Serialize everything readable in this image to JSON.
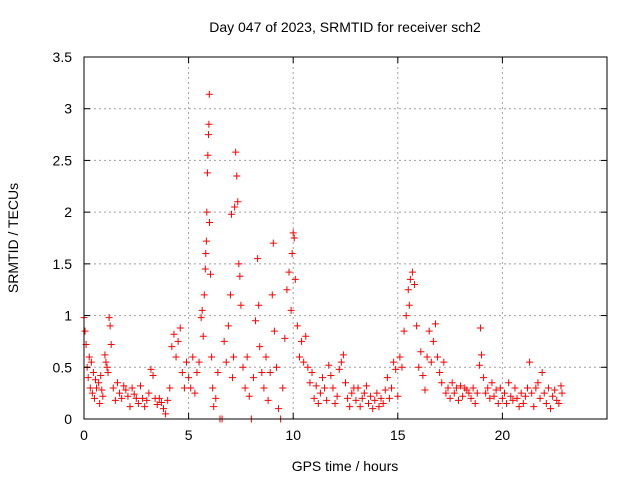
{
  "chart_data": {
    "type": "scatter",
    "title": "Day 047 of 2023, SRMTID for receiver sch2",
    "xlabel": "GPS time / hours",
    "ylabel": "SRMTID / TECUs",
    "xlim": [
      0,
      25
    ],
    "ylim": [
      0,
      3.5
    ],
    "xticks": [
      0,
      5,
      10,
      15,
      20
    ],
    "xtick_labels": [
      "0",
      "5",
      "10",
      "15",
      "20"
    ],
    "yticks": [
      0,
      0.5,
      1,
      1.5,
      2,
      2.5,
      3,
      3.5
    ],
    "ytick_labels": [
      "0",
      "0.5",
      "1",
      "1.5",
      "2",
      "2.5",
      "3",
      "3.5"
    ],
    "grid": true,
    "marker": "+",
    "color": "#ff0000",
    "series": [
      {
        "name": "SRMTID",
        "points": [
          [
            0.0,
            0.98
          ],
          [
            0.05,
            0.85
          ],
          [
            0.1,
            0.72
          ],
          [
            0.15,
            0.5
          ],
          [
            0.2,
            0.4
          ],
          [
            0.25,
            0.6
          ],
          [
            0.3,
            0.3
          ],
          [
            0.35,
            0.55
          ],
          [
            0.4,
            0.25
          ],
          [
            0.45,
            0.45
          ],
          [
            0.5,
            0.2
          ],
          [
            0.55,
            0.38
          ],
          [
            0.6,
            0.3
          ],
          [
            0.7,
            0.35
          ],
          [
            0.75,
            0.15
          ],
          [
            0.8,
            0.42
          ],
          [
            0.85,
            0.28
          ],
          [
            0.9,
            0.22
          ],
          [
            1.0,
            0.62
          ],
          [
            1.05,
            0.55
          ],
          [
            1.1,
            0.5
          ],
          [
            1.15,
            0.45
          ],
          [
            1.2,
            0.98
          ],
          [
            1.25,
            0.9
          ],
          [
            1.3,
            0.72
          ],
          [
            1.4,
            0.3
          ],
          [
            1.5,
            0.18
          ],
          [
            1.6,
            0.35
          ],
          [
            1.7,
            0.25
          ],
          [
            1.8,
            0.2
          ],
          [
            1.9,
            0.32
          ],
          [
            2.0,
            0.28
          ],
          [
            2.1,
            0.22
          ],
          [
            2.2,
            0.12
          ],
          [
            2.3,
            0.3
          ],
          [
            2.4,
            0.24
          ],
          [
            2.5,
            0.2
          ],
          [
            2.6,
            0.15
          ],
          [
            2.7,
            0.32
          ],
          [
            2.8,
            0.2
          ],
          [
            2.9,
            0.12
          ],
          [
            3.0,
            0.18
          ],
          [
            3.1,
            0.25
          ],
          [
            3.2,
            0.48
          ],
          [
            3.3,
            0.42
          ],
          [
            3.4,
            0.2
          ],
          [
            3.5,
            0.14
          ],
          [
            3.6,
            0.2
          ],
          [
            3.7,
            0.16
          ],
          [
            3.8,
            0.1
          ],
          [
            3.9,
            0.05
          ],
          [
            4.0,
            0.18
          ],
          [
            4.1,
            0.3
          ],
          [
            4.2,
            0.7
          ],
          [
            4.3,
            0.82
          ],
          [
            4.4,
            0.6
          ],
          [
            4.5,
            0.75
          ],
          [
            4.6,
            0.88
          ],
          [
            4.7,
            0.45
          ],
          [
            4.8,
            0.3
          ],
          [
            4.9,
            0.55
          ],
          [
            5.0,
            0.4
          ],
          [
            5.1,
            0.3
          ],
          [
            5.2,
            0.6
          ],
          [
            5.3,
            0.25
          ],
          [
            5.4,
            0.45
          ],
          [
            5.5,
            0.55
          ],
          [
            5.6,
            0.98
          ],
          [
            5.65,
            1.05
          ],
          [
            5.7,
            0.8
          ],
          [
            5.75,
            1.2
          ],
          [
            5.8,
            1.45
          ],
          [
            5.82,
            1.6
          ],
          [
            5.85,
            1.72
          ],
          [
            5.87,
            2.0
          ],
          [
            5.9,
            2.38
          ],
          [
            5.92,
            2.55
          ],
          [
            5.95,
            2.75
          ],
          [
            5.97,
            2.85
          ],
          [
            5.99,
            3.14
          ],
          [
            6.0,
            1.9
          ],
          [
            6.05,
            1.4
          ],
          [
            6.1,
            0.6
          ],
          [
            6.15,
            0.3
          ],
          [
            6.2,
            0.12
          ],
          [
            6.3,
            0.2
          ],
          [
            6.4,
            0.45
          ],
          [
            6.5,
            0.0
          ],
          [
            6.6,
            0.0
          ],
          [
            6.7,
            0.75
          ],
          [
            6.8,
            0.55
          ],
          [
            6.9,
            0.9
          ],
          [
            7.0,
            1.2
          ],
          [
            7.05,
            1.98
          ],
          [
            7.1,
            0.4
          ],
          [
            7.15,
            0.6
          ],
          [
            7.2,
            2.05
          ],
          [
            7.25,
            2.58
          ],
          [
            7.3,
            2.35
          ],
          [
            7.35,
            2.1
          ],
          [
            7.4,
            1.5
          ],
          [
            7.45,
            1.38
          ],
          [
            7.5,
            1.1
          ],
          [
            7.6,
            0.5
          ],
          [
            7.7,
            0.3
          ],
          [
            7.8,
            0.6
          ],
          [
            7.9,
            0.22
          ],
          [
            8.0,
            0.0
          ],
          [
            8.1,
            0.4
          ],
          [
            8.2,
            0.95
          ],
          [
            8.3,
            1.55
          ],
          [
            8.35,
            1.1
          ],
          [
            8.4,
            0.7
          ],
          [
            8.5,
            0.45
          ],
          [
            8.6,
            0.3
          ],
          [
            8.7,
            0.6
          ],
          [
            8.8,
            0.18
          ],
          [
            8.9,
            0.45
          ],
          [
            9.0,
            1.2
          ],
          [
            9.05,
            1.7
          ],
          [
            9.1,
            0.85
          ],
          [
            9.2,
            0.5
          ],
          [
            9.3,
            0.1
          ],
          [
            9.4,
            0.0
          ],
          [
            9.5,
            0.3
          ],
          [
            9.6,
            0.78
          ],
          [
            9.7,
            1.25
          ],
          [
            9.8,
            1.42
          ],
          [
            9.9,
            1.05
          ],
          [
            9.95,
            1.6
          ],
          [
            10.0,
            1.8
          ],
          [
            10.05,
            1.75
          ],
          [
            10.1,
            1.35
          ],
          [
            10.2,
            0.9
          ],
          [
            10.3,
            0.6
          ],
          [
            10.4,
            0.75
          ],
          [
            10.5,
            0.55
          ],
          [
            10.6,
            0.8
          ],
          [
            10.7,
            0.5
          ],
          [
            10.8,
            0.35
          ],
          [
            10.9,
            0.45
          ],
          [
            11.0,
            0.2
          ],
          [
            11.1,
            0.32
          ],
          [
            11.2,
            0.15
          ],
          [
            11.3,
            0.25
          ],
          [
            11.4,
            0.4
          ],
          [
            11.5,
            0.3
          ],
          [
            11.6,
            0.18
          ],
          [
            11.7,
            0.52
          ],
          [
            11.8,
            0.42
          ],
          [
            11.9,
            0.3
          ],
          [
            12.0,
            0.15
          ],
          [
            12.1,
            0.22
          ],
          [
            12.2,
            0.48
          ],
          [
            12.3,
            0.55
          ],
          [
            12.4,
            0.62
          ],
          [
            12.5,
            0.35
          ],
          [
            12.6,
            0.2
          ],
          [
            12.7,
            0.12
          ],
          [
            12.8,
            0.25
          ],
          [
            12.9,
            0.3
          ],
          [
            13.0,
            0.18
          ],
          [
            13.1,
            0.3
          ],
          [
            13.2,
            0.12
          ],
          [
            13.3,
            0.2
          ],
          [
            13.4,
            0.25
          ],
          [
            13.5,
            0.32
          ],
          [
            13.6,
            0.15
          ],
          [
            13.7,
            0.22
          ],
          [
            13.8,
            0.1
          ],
          [
            13.9,
            0.18
          ],
          [
            14.0,
            0.25
          ],
          [
            14.1,
            0.12
          ],
          [
            14.2,
            0.2
          ],
          [
            14.3,
            0.15
          ],
          [
            14.4,
            0.28
          ],
          [
            14.5,
            0.4
          ],
          [
            14.6,
            0.2
          ],
          [
            14.7,
            0.3
          ],
          [
            14.8,
            0.55
          ],
          [
            14.9,
            0.48
          ],
          [
            15.0,
            0.22
          ],
          [
            15.1,
            0.6
          ],
          [
            15.2,
            0.5
          ],
          [
            15.3,
            0.85
          ],
          [
            15.4,
            1.0
          ],
          [
            15.5,
            1.25
          ],
          [
            15.55,
            1.1
          ],
          [
            15.6,
            1.35
          ],
          [
            15.7,
            1.42
          ],
          [
            15.8,
            1.3
          ],
          [
            15.9,
            0.9
          ],
          [
            16.0,
            0.5
          ],
          [
            16.1,
            0.65
          ],
          [
            16.2,
            0.42
          ],
          [
            16.3,
            0.28
          ],
          [
            16.4,
            0.6
          ],
          [
            16.5,
            0.85
          ],
          [
            16.6,
            0.55
          ],
          [
            16.7,
            0.75
          ],
          [
            16.8,
            0.92
          ],
          [
            16.9,
            0.6
          ],
          [
            17.0,
            0.45
          ],
          [
            17.1,
            0.35
          ],
          [
            17.2,
            0.55
          ],
          [
            17.3,
            0.25
          ],
          [
            17.4,
            0.3
          ],
          [
            17.5,
            0.2
          ],
          [
            17.6,
            0.35
          ],
          [
            17.7,
            0.25
          ],
          [
            17.8,
            0.3
          ],
          [
            17.9,
            0.18
          ],
          [
            18.0,
            0.32
          ],
          [
            18.1,
            0.22
          ],
          [
            18.2,
            0.3
          ],
          [
            18.3,
            0.28
          ],
          [
            18.4,
            0.25
          ],
          [
            18.5,
            0.2
          ],
          [
            18.6,
            0.3
          ],
          [
            18.7,
            0.15
          ],
          [
            18.8,
            0.25
          ],
          [
            18.9,
            0.52
          ],
          [
            18.95,
            0.88
          ],
          [
            19.0,
            0.62
          ],
          [
            19.1,
            0.4
          ],
          [
            19.2,
            0.25
          ],
          [
            19.3,
            0.3
          ],
          [
            19.4,
            0.2
          ],
          [
            19.5,
            0.35
          ],
          [
            19.6,
            0.22
          ],
          [
            19.7,
            0.28
          ],
          [
            19.8,
            0.15
          ],
          [
            19.9,
            0.3
          ],
          [
            20.0,
            0.2
          ],
          [
            20.1,
            0.25
          ],
          [
            20.2,
            0.15
          ],
          [
            20.3,
            0.35
          ],
          [
            20.4,
            0.22
          ],
          [
            20.5,
            0.18
          ],
          [
            20.6,
            0.3
          ],
          [
            20.7,
            0.2
          ],
          [
            20.8,
            0.12
          ],
          [
            20.9,
            0.25
          ],
          [
            21.0,
            0.15
          ],
          [
            21.1,
            0.22
          ],
          [
            21.2,
            0.3
          ],
          [
            21.3,
            0.55
          ],
          [
            21.4,
            0.25
          ],
          [
            21.5,
            0.12
          ],
          [
            21.6,
            0.3
          ],
          [
            21.7,
            0.35
          ],
          [
            21.8,
            0.2
          ],
          [
            21.9,
            0.45
          ],
          [
            22.0,
            0.25
          ],
          [
            22.1,
            0.15
          ],
          [
            22.2,
            0.3
          ],
          [
            22.3,
            0.1
          ],
          [
            22.4,
            0.22
          ],
          [
            22.5,
            0.28
          ],
          [
            22.6,
            0.18
          ],
          [
            22.7,
            0.15
          ],
          [
            22.8,
            0.32
          ],
          [
            22.85,
            0.25
          ]
        ]
      }
    ]
  }
}
